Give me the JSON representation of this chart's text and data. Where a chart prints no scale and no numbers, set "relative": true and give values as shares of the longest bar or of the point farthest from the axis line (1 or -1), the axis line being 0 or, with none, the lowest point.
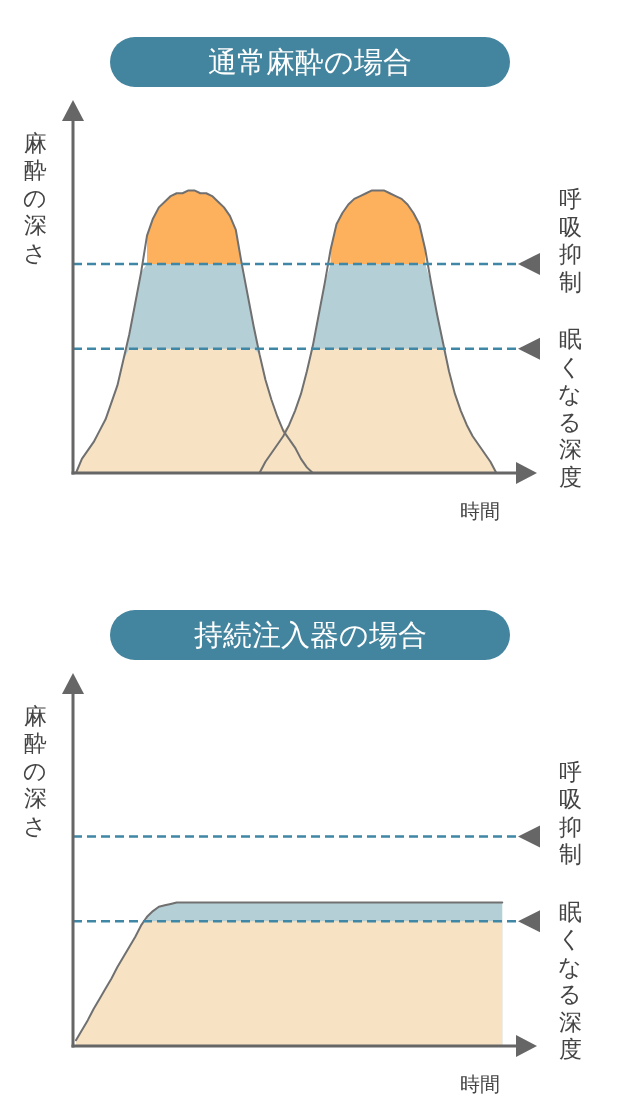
{
  "chart_data": [
    {
      "type": "area",
      "title": "通常麻酔の場合",
      "ylabel": "麻酔の深さ",
      "xlabel": "時間",
      "relative": true,
      "categories": [
        null,
        null,
        null,
        null,
        null,
        null,
        null,
        null,
        null,
        null,
        null,
        null,
        null,
        null,
        null,
        null,
        null,
        null,
        null,
        null,
        null,
        null,
        null,
        null,
        null,
        null,
        null,
        null,
        null,
        null,
        null,
        null,
        null,
        null,
        null,
        null,
        null,
        null,
        null,
        null,
        null,
        null,
        null,
        null,
        null,
        null,
        null,
        null,
        null,
        null,
        null,
        null,
        null,
        null,
        null,
        null,
        null,
        null,
        null,
        null,
        null,
        null,
        null,
        null,
        null,
        null,
        null,
        null,
        null,
        null,
        null,
        null,
        null,
        null,
        null,
        null
      ],
      "series": [
        {
          "color": "#fdb15c",
          "values": [
            null,
            null,
            null,
            null,
            null,
            null,
            null,
            null,
            null,
            null,
            null,
            null,
            0.84,
            0.9,
            0.94,
            0.96,
            0.98,
            0.99,
            0.99,
            1,
            1,
            0.99,
            0.99,
            0.98,
            0.96,
            0.94,
            0.91,
            0.86,
            0.74,
            null,
            null,
            null,
            null,
            null,
            null,
            null,
            null,
            null,
            null,
            null,
            null,
            null,
            null,
            0.79,
            0.88,
            0.92,
            0.95,
            0.97,
            0.98,
            0.99,
            1,
            1,
            1,
            0.99,
            0.98,
            0.97,
            0.95,
            0.92,
            0.88,
            0.79,
            null,
            null,
            null,
            null,
            null,
            null,
            null,
            null,
            null,
            null,
            null,
            null,
            null,
            null,
            null,
            null
          ]
        },
        {
          "color": "#b5cfd7",
          "values": [
            null,
            null,
            null,
            null,
            null,
            null,
            null,
            null,
            0.4,
            0.49,
            0.6,
            0.71,
            0.74,
            0.74,
            0.74,
            0.74,
            0.74,
            0.74,
            0.74,
            0.74,
            0.74,
            0.74,
            0.74,
            0.74,
            0.74,
            0.74,
            0.74,
            0.74,
            0.74,
            0.63,
            0.52,
            0.42,
            null,
            null,
            null,
            null,
            null,
            null,
            null,
            0.36,
            0.45,
            0.56,
            0.67,
            0.74,
            0.74,
            0.74,
            0.74,
            0.74,
            0.74,
            0.74,
            0.74,
            0.74,
            0.74,
            0.74,
            0.74,
            0.74,
            0.74,
            0.74,
            0.74,
            0.74,
            0.67,
            0.56,
            0.46,
            0.36,
            null,
            null,
            null,
            null,
            null,
            null,
            null,
            null,
            null,
            null,
            null,
            null
          ]
        },
        {
          "color": "#f7e3c4",
          "values": [
            0,
            0.05,
            0.08,
            0.11,
            0.15,
            0.19,
            0.25,
            0.31,
            0.4,
            0.44,
            0.44,
            0.44,
            0.44,
            0.44,
            0.44,
            0.44,
            0.44,
            0.44,
            0.44,
            0.44,
            0.44,
            0.44,
            0.44,
            0.44,
            0.44,
            0.44,
            0.44,
            0.44,
            0.44,
            0.44,
            0.44,
            0.42,
            0.33,
            0.26,
            0.2,
            0.15,
            0.17,
            0.22,
            0.28,
            0.36,
            0.44,
            0.44,
            0.44,
            0.44,
            0.44,
            0.44,
            0.44,
            0.44,
            0.44,
            0.44,
            0.44,
            0.44,
            0.44,
            0.44,
            0.44,
            0.44,
            0.44,
            0.44,
            0.44,
            0.44,
            0.44,
            0.44,
            0.44,
            0.36,
            0.28,
            0.22,
            0.17,
            0.13,
            0.1,
            0.07,
            0.04,
            0,
            null,
            null,
            null,
            null
          ]
        },
        {
          "type": "line",
          "color": "#707070",
          "values": [
            0,
            0.05,
            0.08,
            0.11,
            0.15,
            0.19,
            0.25,
            0.31,
            0.4,
            0.49,
            0.6,
            0.71,
            0.84,
            0.9,
            0.94,
            0.96,
            0.98,
            0.99,
            0.99,
            1,
            1,
            0.99,
            0.99,
            0.98,
            0.96,
            0.94,
            0.91,
            0.86,
            0.74,
            0.63,
            0.52,
            0.42,
            0.33,
            0.26,
            0.2,
            0.15,
            0.12,
            0.09,
            0.05,
            0.02,
            0,
            null,
            null,
            null,
            null,
            null,
            null,
            null,
            null,
            null,
            null,
            null,
            null,
            null,
            null,
            null,
            null,
            null,
            null,
            null,
            null,
            null,
            null,
            null,
            null,
            null,
            null,
            null,
            null,
            null,
            null,
            null,
            null,
            null,
            null,
            null
          ]
        },
        {
          "type": "line",
          "color": "#707070",
          "values": [
            null,
            null,
            null,
            null,
            null,
            null,
            null,
            null,
            null,
            null,
            null,
            null,
            null,
            null,
            null,
            null,
            null,
            null,
            null,
            null,
            null,
            null,
            null,
            null,
            null,
            null,
            null,
            null,
            null,
            null,
            null,
            0,
            0.04,
            0.07,
            0.1,
            0.13,
            0.17,
            0.22,
            0.28,
            0.36,
            0.45,
            0.56,
            0.67,
            0.79,
            0.88,
            0.92,
            0.95,
            0.97,
            0.98,
            0.99,
            1,
            1,
            1,
            0.99,
            0.98,
            0.97,
            0.95,
            0.92,
            0.88,
            0.79,
            0.67,
            0.56,
            0.46,
            0.36,
            0.28,
            0.22,
            0.17,
            0.13,
            0.1,
            0.07,
            0.04,
            0,
            null,
            null,
            null,
            null
          ]
        }
      ],
      "ref_lines": [
        {
          "axis": "y",
          "value": 0.74,
          "label": "呼吸抑制",
          "color": "#3f87a4",
          "line_style": "dashed"
        },
        {
          "axis": "y",
          "value": 0.44,
          "label": "眠くなる深度",
          "color": "#3f87a4",
          "line_style": "dashed"
        }
      ]
    },
    {
      "type": "area",
      "title": "持続注入器の場合",
      "ylabel": "麻酔の深さ",
      "xlabel": "時間",
      "relative": true,
      "categories": [
        null,
        null,
        null,
        null,
        null,
        null,
        null,
        null,
        null,
        null,
        null,
        null,
        null,
        null,
        null,
        null,
        null,
        null,
        null,
        null,
        null,
        null,
        null,
        null,
        null,
        null,
        null,
        null,
        null,
        null,
        null,
        null,
        null,
        null,
        null,
        null,
        null,
        null,
        null,
        null,
        null,
        null,
        null,
        null,
        null,
        null,
        null,
        null,
        null,
        null,
        null,
        null,
        null,
        null,
        null,
        null,
        null,
        null,
        null,
        null,
        null,
        null,
        null,
        null,
        null,
        null,
        null,
        null,
        null,
        null,
        null,
        null,
        null,
        null,
        null,
        null
      ],
      "series": [
        {
          "color": "#b5cfd7",
          "values": [
            null,
            null,
            null,
            null,
            null,
            null,
            null,
            null,
            null,
            null,
            null,
            null,
            0.9,
            0.94,
            0.97,
            0.98,
            0.99,
            1,
            1,
            1,
            1,
            1,
            1,
            1,
            1,
            1,
            1,
            1,
            1,
            1,
            1,
            1,
            1,
            1,
            1,
            1,
            1,
            1,
            1,
            1,
            1,
            1,
            1,
            1,
            1,
            1,
            1,
            1,
            1,
            1,
            1,
            1,
            1,
            1,
            1,
            1,
            1,
            1,
            1,
            1,
            1,
            1,
            1,
            1,
            1,
            1,
            1,
            1,
            1,
            1,
            1,
            1,
            1,
            null,
            null,
            null
          ]
        },
        {
          "color": "#f7e3c4",
          "values": [
            0.04,
            0.11,
            0.18,
            0.26,
            0.33,
            0.4,
            0.47,
            0.55,
            0.62,
            0.69,
            0.76,
            0.84,
            0.87,
            0.87,
            0.87,
            0.87,
            0.87,
            0.87,
            0.87,
            0.87,
            0.87,
            0.87,
            0.87,
            0.87,
            0.87,
            0.87,
            0.87,
            0.87,
            0.87,
            0.87,
            0.87,
            0.87,
            0.87,
            0.87,
            0.87,
            0.87,
            0.87,
            0.87,
            0.87,
            0.87,
            0.87,
            0.87,
            0.87,
            0.87,
            0.87,
            0.87,
            0.87,
            0.87,
            0.87,
            0.87,
            0.87,
            0.87,
            0.87,
            0.87,
            0.87,
            0.87,
            0.87,
            0.87,
            0.87,
            0.87,
            0.87,
            0.87,
            0.87,
            0.87,
            0.87,
            0.87,
            0.87,
            0.87,
            0.87,
            0.87,
            0.87,
            0.87,
            0.87,
            null,
            null,
            null
          ]
        },
        {
          "type": "line",
          "color": "#707070",
          "values": [
            0.04,
            0.11,
            0.18,
            0.26,
            0.33,
            0.4,
            0.47,
            0.55,
            0.62,
            0.69,
            0.76,
            0.84,
            0.9,
            0.94,
            0.97,
            0.98,
            0.99,
            1,
            1,
            1,
            1,
            1,
            1,
            1,
            1,
            1,
            1,
            1,
            1,
            1,
            1,
            1,
            1,
            1,
            1,
            1,
            1,
            1,
            1,
            1,
            1,
            1,
            1,
            1,
            1,
            1,
            1,
            1,
            1,
            1,
            1,
            1,
            1,
            1,
            1,
            1,
            1,
            1,
            1,
            1,
            1,
            1,
            1,
            1,
            1,
            1,
            1,
            1,
            1,
            1,
            1,
            1,
            1,
            null,
            null,
            null
          ]
        }
      ],
      "ref_lines": [
        {
          "axis": "y",
          "value": 1.46,
          "label": "呼吸抑制",
          "color": "#3f87a4",
          "line_style": "dashed"
        },
        {
          "axis": "y",
          "value": 0.87,
          "label": "眠くなる深度",
          "color": "#3f87a4",
          "line_style": "dashed"
        }
      ]
    }
  ]
}
